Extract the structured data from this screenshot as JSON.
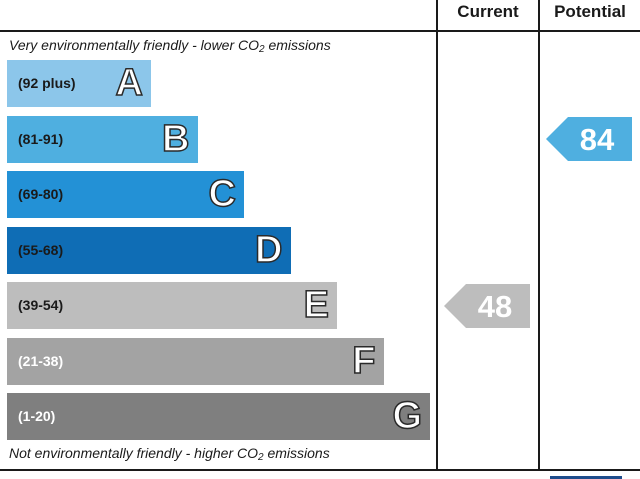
{
  "chart_data": {
    "type": "bar",
    "title": "",
    "columns": [
      "Current",
      "Potential"
    ],
    "top_caption": {
      "before": "Very environmentally friendly - lower C",
      "sub_prefix": "O",
      "sub": "2",
      "after": " emissions"
    },
    "bottom_caption": {
      "before": "Not environmentally friendly - higher C",
      "sub_prefix": "O",
      "sub": "2",
      "after": " emissions"
    },
    "categories": [
      "A",
      "B",
      "C",
      "D",
      "E",
      "F",
      "G"
    ],
    "ranges": [
      "(92 plus)",
      "(81-91)",
      "(69-80)",
      "(55-68)",
      "(39-54)",
      "(21-38)",
      "(1-20)"
    ],
    "colors": [
      "#8cc6ea",
      "#4fafe0",
      "#2391d6",
      "#0f6db5",
      "#bdbdbd",
      "#a3a3a3",
      "#7f7f7f"
    ],
    "range_text_colors": [
      "#1a1a1a",
      "#1a1a1a",
      "#1a1a1a",
      "#1a1a1a",
      "#1a1a1a",
      "#ffffff",
      "#ffffff"
    ],
    "ratings": {
      "current": {
        "value": 48,
        "band": "E",
        "color": "#bdbdbd"
      },
      "potential": {
        "value": 84,
        "band": "B",
        "color": "#4fafe0"
      }
    }
  }
}
